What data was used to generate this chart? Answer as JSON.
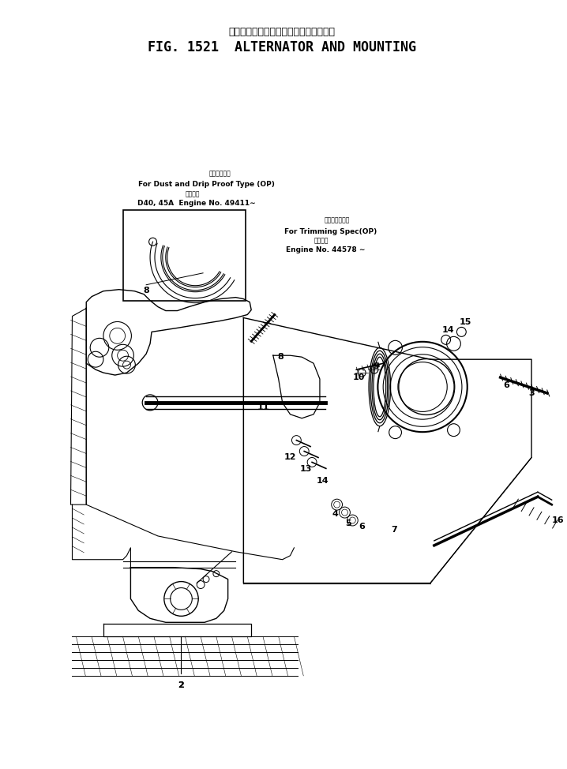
{
  "title_japanese": "オルタネータ　および　マウンティング",
  "title_english": "FIG. 1521  ALTERNATOR AND MOUNTING",
  "bg_color": "#ffffff",
  "fig_width": 7.18,
  "fig_height": 9.74,
  "dpi": 100,
  "ann_dust_jp": "防塵防滴型用",
  "ann_dust_en": "For Dust and Drip Proof Type (OP)",
  "ann_appno_jp": "適用号機",
  "ann_appno1": "D40, 45A  Engine No. 49411∼",
  "ann_trim_jp": "トリミング仕機",
  "ann_trim_en": "For Trimming Spec(OP)",
  "ann_appno2_jp": "適用号機",
  "ann_appno2": "Engine No. 44578 ∼"
}
